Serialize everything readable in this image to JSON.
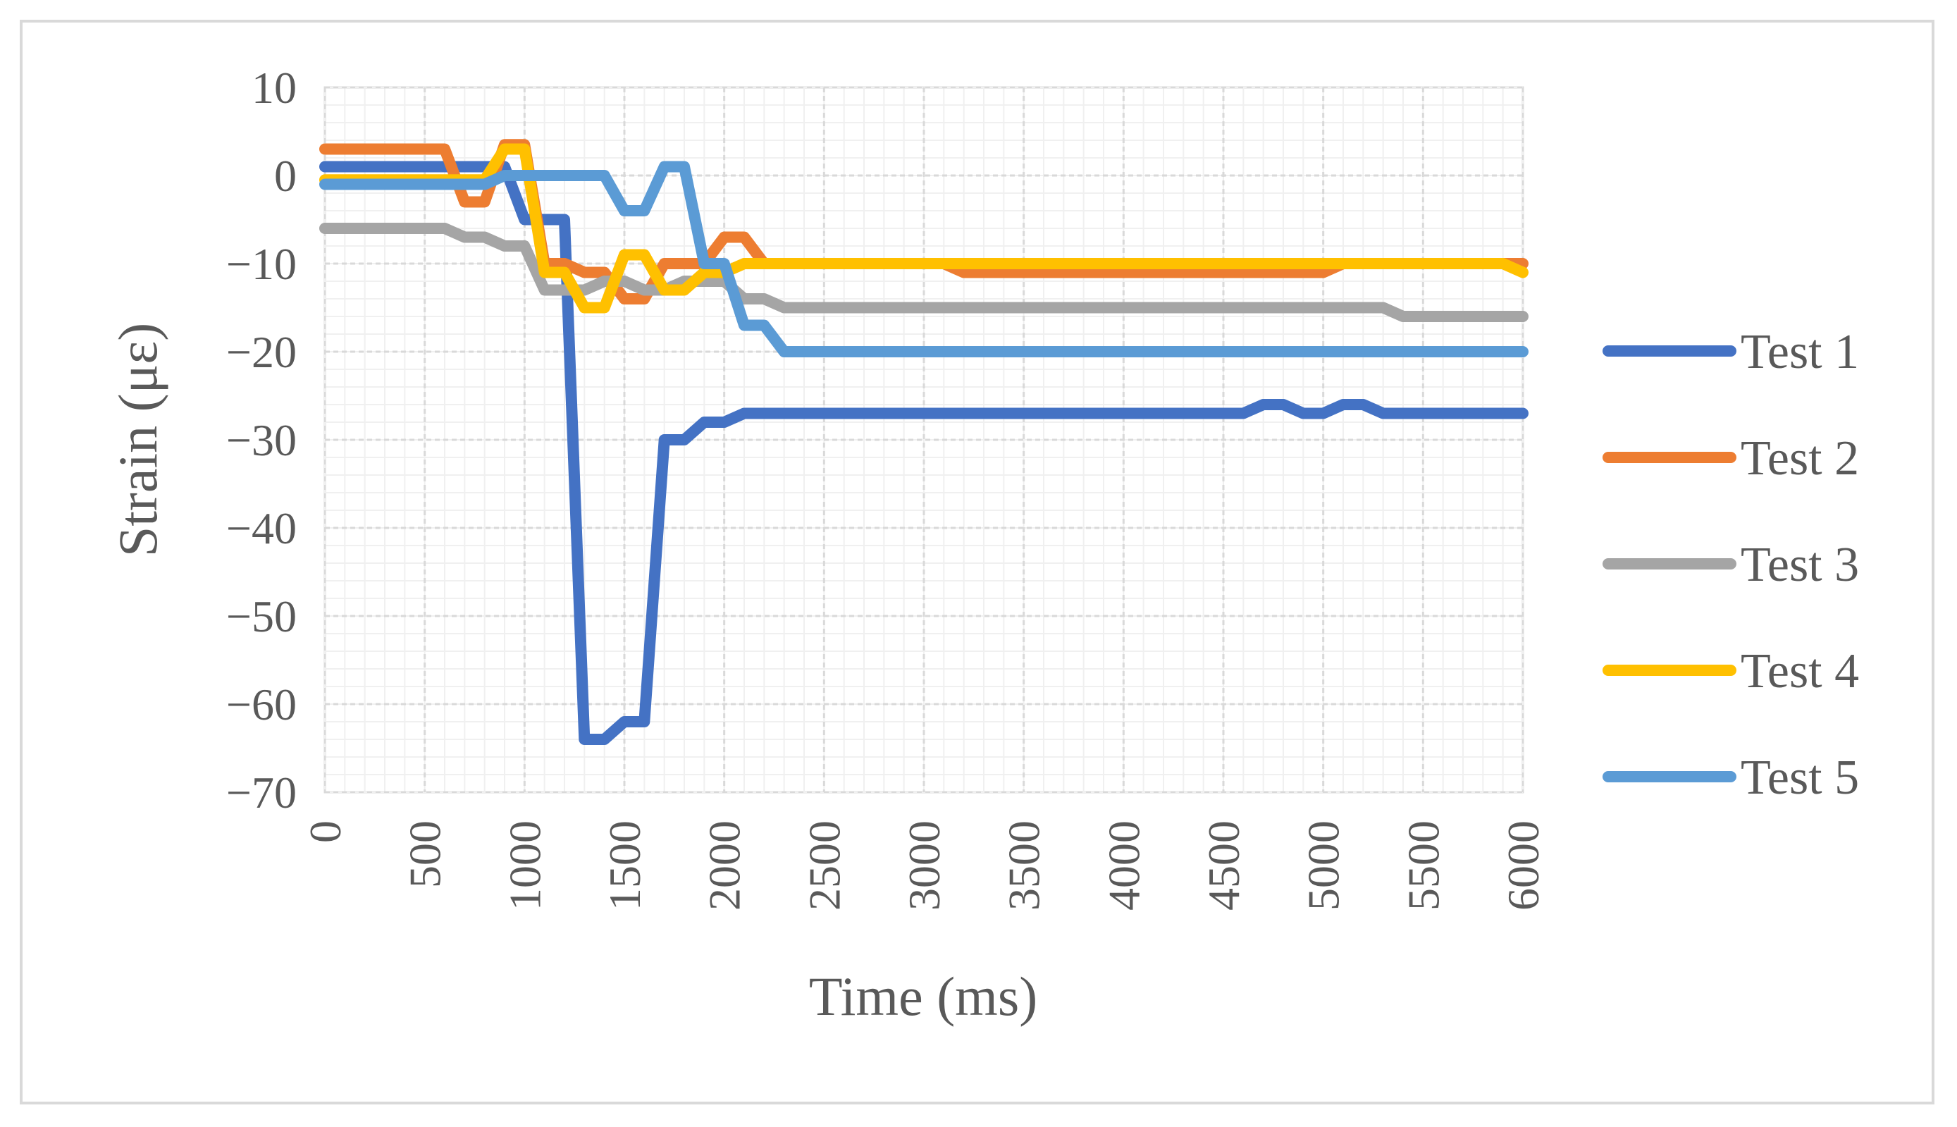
{
  "chart_data": {
    "type": "line",
    "title": "",
    "xlabel": "Time (ms)",
    "ylabel": "Strain (με)",
    "xlim": [
      0,
      6000
    ],
    "ylim": [
      -70,
      10
    ],
    "x_tick_step": 500,
    "y_tick_step": 10,
    "x_ticks": [
      "0",
      "500",
      "1000",
      "1500",
      "2000",
      "2500",
      "3000",
      "3500",
      "4000",
      "4500",
      "5000",
      "5500",
      "6000"
    ],
    "y_ticks": [
      "10",
      "0",
      "−10",
      "−20",
      "−30",
      "−40",
      "−50",
      "−60",
      "−70"
    ],
    "grid": true,
    "legend_position": "right",
    "x": [
      0,
      100,
      200,
      300,
      400,
      500,
      600,
      700,
      800,
      900,
      1000,
      1100,
      1200,
      1300,
      1400,
      1500,
      1600,
      1700,
      1800,
      1900,
      2000,
      2100,
      2200,
      2300,
      2400,
      2500,
      2600,
      2700,
      2800,
      2900,
      3000,
      3100,
      3200,
      3300,
      3400,
      3500,
      3600,
      3700,
      3800,
      3900,
      4000,
      4100,
      4200,
      4300,
      4400,
      4500,
      4600,
      4700,
      4800,
      4900,
      5000,
      5100,
      5200,
      5300,
      5400,
      5500,
      5600,
      5700,
      5800,
      5900,
      6000
    ],
    "series": [
      {
        "name": "Test 1",
        "color": "#4472c4",
        "values": [
          1,
          1,
          1,
          1,
          1,
          1,
          1,
          1,
          1,
          1,
          -5,
          -5,
          -5,
          -64,
          -64,
          -62,
          -62,
          -30,
          -30,
          -28,
          -28,
          -27,
          -27,
          -27,
          -27,
          -27,
          -27,
          -27,
          -27,
          -27,
          -27,
          -27,
          -27,
          -27,
          -27,
          -27,
          -27,
          -27,
          -27,
          -27,
          -27,
          -27,
          -27,
          -27,
          -27,
          -27,
          -27,
          -26,
          -26,
          -27,
          -27,
          -26,
          -26,
          -27,
          -27,
          -27,
          -27,
          -27,
          -27,
          -27,
          -27
        ]
      },
      {
        "name": "Test 2",
        "color": "#ed7d31",
        "values": [
          3,
          3,
          3,
          3,
          3,
          3,
          3,
          -3,
          -3,
          3.5,
          3.5,
          -10,
          -10,
          -11,
          -11,
          -14,
          -14,
          -10,
          -10,
          -10,
          -7,
          -7,
          -10,
          -10,
          -10,
          -10,
          -10,
          -10,
          -10,
          -10,
          -10,
          -10,
          -11,
          -11,
          -11,
          -11,
          -11,
          -11,
          -11,
          -11,
          -11,
          -11,
          -11,
          -11,
          -11,
          -11,
          -11,
          -11,
          -11,
          -11,
          -11,
          -10,
          -10,
          -10,
          -10,
          -10,
          -10,
          -10,
          -10,
          -10,
          -10
        ]
      },
      {
        "name": "Test 3",
        "color": "#a5a5a5",
        "values": [
          -6,
          -6,
          -6,
          -6,
          -6,
          -6,
          -6,
          -7,
          -7,
          -8,
          -8,
          -13,
          -13,
          -13,
          -12,
          -12,
          -13,
          -13,
          -12,
          -12,
          -12,
          -14,
          -14,
          -15,
          -15,
          -15,
          -15,
          -15,
          -15,
          -15,
          -15,
          -15,
          -15,
          -15,
          -15,
          -15,
          -15,
          -15,
          -15,
          -15,
          -15,
          -15,
          -15,
          -15,
          -15,
          -15,
          -15,
          -15,
          -15,
          -15,
          -15,
          -15,
          -15,
          -15,
          -16,
          -16,
          -16,
          -16,
          -16,
          -16,
          -16
        ]
      },
      {
        "name": "Test 4",
        "color": "#ffc000",
        "values": [
          -0.5,
          -0.5,
          -0.5,
          -0.5,
          -0.5,
          -0.5,
          -0.5,
          -0.5,
          -0.5,
          3,
          3,
          -11,
          -11,
          -15,
          -15,
          -9,
          -9,
          -13,
          -13,
          -11,
          -11,
          -10,
          -10,
          -10,
          -10,
          -10,
          -10,
          -10,
          -10,
          -10,
          -10,
          -10,
          -10,
          -10,
          -10,
          -10,
          -10,
          -10,
          -10,
          -10,
          -10,
          -10,
          -10,
          -10,
          -10,
          -10,
          -10,
          -10,
          -10,
          -10,
          -10,
          -10,
          -10,
          -10,
          -10,
          -10,
          -10,
          -10,
          -10,
          -10,
          -11
        ]
      },
      {
        "name": "Test 5",
        "color": "#5b9bd5",
        "values": [
          -1,
          -1,
          -1,
          -1,
          -1,
          -1,
          -1,
          -1,
          -1,
          0,
          0,
          0,
          0,
          0,
          0,
          -4,
          -4,
          1,
          1,
          -10,
          -10,
          -17,
          -17,
          -20,
          -20,
          -20,
          -20,
          -20,
          -20,
          -20,
          -20,
          -20,
          -20,
          -20,
          -20,
          -20,
          -20,
          -20,
          -20,
          -20,
          -20,
          -20,
          -20,
          -20,
          -20,
          -20,
          -20,
          -20,
          -20,
          -20,
          -20,
          -20,
          -20,
          -20,
          -20,
          -20,
          -20,
          -20,
          -20,
          -20,
          -20
        ]
      }
    ]
  }
}
